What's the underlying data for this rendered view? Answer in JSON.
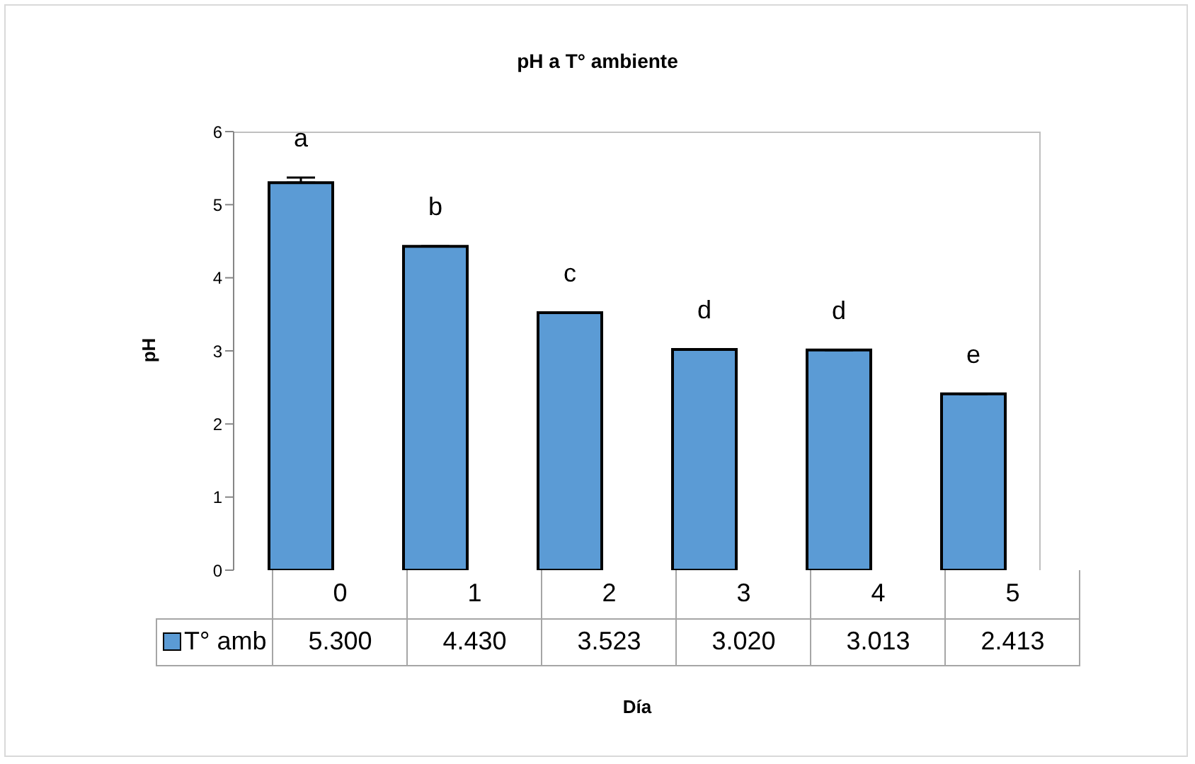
{
  "chart_data": {
    "type": "bar",
    "title": "pH a T° ambiente",
    "xlabel": "Día",
    "ylabel": "pH",
    "categories": [
      "0",
      "1",
      "2",
      "3",
      "4",
      "5"
    ],
    "series": [
      {
        "name": "T° amb",
        "color": "#5b9bd5",
        "values": [
          5.3,
          4.43,
          3.523,
          3.02,
          3.013,
          2.413
        ],
        "value_labels": [
          "5.300",
          "4.430",
          "3.523",
          "3.020",
          "3.013",
          "2.413"
        ],
        "errors": [
          [
            5.3,
            5.37
          ],
          null,
          null,
          null,
          null,
          null
        ]
      }
    ],
    "annotations": [
      "a",
      "b",
      "c",
      "d",
      "d",
      "e"
    ],
    "ylim": [
      0,
      6
    ],
    "yticks": [
      0,
      1,
      2,
      3,
      4,
      5,
      6
    ],
    "grid": false,
    "legend": "bottom left"
  }
}
